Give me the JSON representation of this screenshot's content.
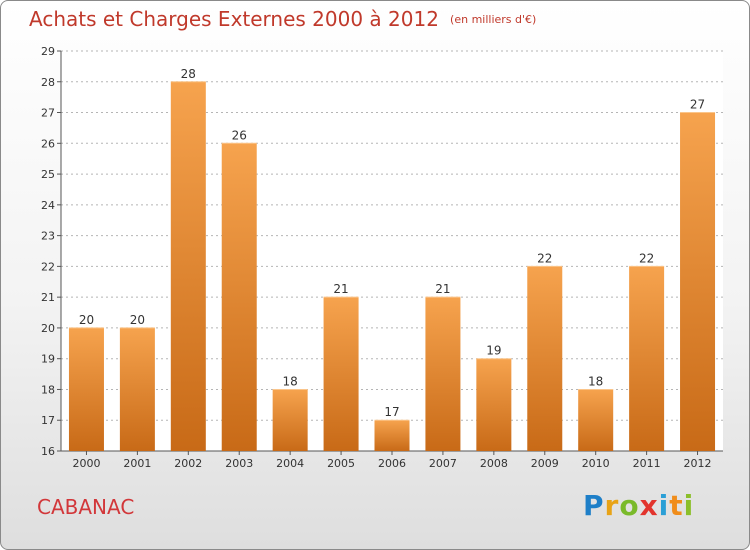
{
  "title": "Achats et Charges Externes 2000 à 2012",
  "unit": "(en milliers d'€)",
  "commune": "CABANAC",
  "logo": {
    "p": "P",
    "r": "r",
    "o": "o",
    "x": "x",
    "i1": "i",
    "t": "t",
    "i2": "i"
  },
  "colors": {
    "bar_light": "#f6a34e",
    "bar_dark": "#c86a17",
    "title": "#c0392b",
    "commune": "#d2373a"
  },
  "chart_data": {
    "type": "bar",
    "categories": [
      "2000",
      "2001",
      "2002",
      "2003",
      "2004",
      "2005",
      "2006",
      "2007",
      "2008",
      "2009",
      "2010",
      "2011",
      "2012"
    ],
    "values": [
      20,
      20,
      28,
      26,
      18,
      21,
      17,
      21,
      19,
      22,
      18,
      22,
      27
    ],
    "ylim": [
      16,
      29
    ],
    "yticks": [
      16,
      17,
      18,
      19,
      20,
      21,
      22,
      23,
      24,
      25,
      26,
      27,
      28,
      29
    ],
    "xlabel": "",
    "ylabel": "",
    "grid": true,
    "data_labels": true
  }
}
